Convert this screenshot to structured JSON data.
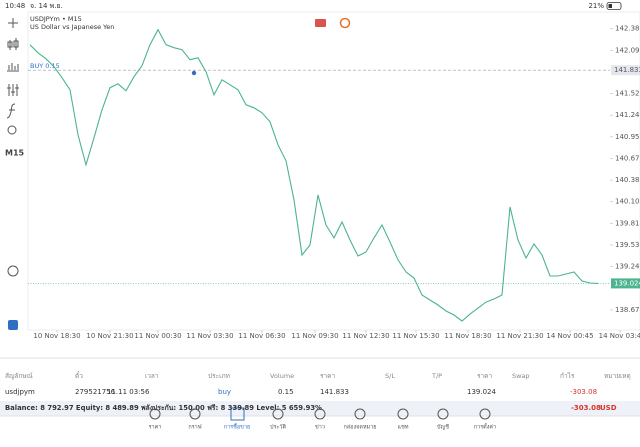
{
  "status": {
    "time": "10:48",
    "date": "จ. 14 พ.ย.",
    "battery": "21%"
  },
  "toolbar": {
    "timeframe": "M15"
  },
  "chart": {
    "type": "line",
    "symbol": "USDJPYm • M15",
    "description": "US Dollar vs Japanese Yen",
    "color": "#4cb48e",
    "values": [
      142.169,
      142.063,
      141.984,
      141.879,
      141.734,
      141.575,
      140.982,
      140.586,
      140.942,
      141.311,
      141.602,
      141.654,
      141.562,
      141.747,
      141.892,
      142.169,
      142.367,
      142.169,
      142.129,
      142.103,
      141.971,
      141.997,
      141.813,
      141.509,
      141.707,
      141.641,
      141.575,
      141.377,
      141.338,
      141.272,
      141.153,
      140.85,
      140.639,
      140.124,
      139.398,
      139.53,
      140.19,
      139.794,
      139.623,
      139.834,
      139.596,
      139.385,
      139.438,
      139.623,
      139.794,
      139.57,
      139.333,
      139.174,
      139.095,
      138.871,
      138.805,
      138.739,
      138.66,
      138.607,
      138.528,
      138.62,
      138.699,
      138.778,
      138.818,
      138.871,
      140.032,
      139.596,
      139.359,
      139.544,
      139.398,
      139.121,
      139.121,
      139.148,
      139.174,
      139.055,
      139.029,
      139.024
    ],
    "xlim": [
      -0.25,
      72.5
    ],
    "xticks": [
      {
        "value": 3.375,
        "label": "10 Nov 18:30"
      },
      {
        "value": 10,
        "label": "10 Nov 21:30"
      },
      {
        "value": 16,
        "label": "11 Nov 00:30"
      },
      {
        "value": 22.5,
        "label": "11 Nov 03:30"
      },
      {
        "value": 29,
        "label": "11 Nov 06:30"
      },
      {
        "value": 35.625,
        "label": "11 Nov 09:30"
      },
      {
        "value": 42,
        "label": "11 Nov 12:30"
      },
      {
        "value": 48.25,
        "label": "11 Nov 15:30"
      },
      {
        "value": 54.75,
        "label": "11 Nov 18:30"
      },
      {
        "value": 61.25,
        "label": "11 Nov 21:30"
      },
      {
        "value": 67.5,
        "label": "14 Nov 00:45"
      },
      {
        "value": 73.75,
        "label": "14 Nov 03:4"
      }
    ],
    "ylim": [
      138.41,
      142.6
    ],
    "yticks": [
      {
        "value": 142.38,
        "label": "142.380"
      },
      142.095,
      141.525,
      {
        "value": 141.24,
        "label": "141.240"
      },
      140.955,
      {
        "value": 140.67,
        "label": "140.670"
      },
      140.385,
      {
        "value": 140.1,
        "label": "140.100"
      },
      139.815,
      {
        "value": 139.53,
        "label": "139.530"
      },
      139.245,
      138.675
    ],
    "buy_label": "BUY 0.15",
    "buy_price": 141.833,
    "current_price": 139.024
  },
  "table": {
    "headers": [
      "สัญลักษณ์",
      "ตั๋ว",
      "เวลา",
      "ประเภท",
      "Volume",
      "ราคา",
      "S/L",
      "T/P",
      "ราคา",
      "Swap",
      "กำไร",
      "หมายเหตุ"
    ],
    "rows": [
      [
        "usdjpym",
        "279521756",
        "11.11 03:56",
        "buy",
        "0.15",
        "141.833",
        "",
        "",
        "139.024",
        "",
        "-303.08",
        ""
      ]
    ],
    "balance": "Balance: 8 792.97 Equity: 8 489.89 พลังประกัน: 150.00 ฟรี: 8 339.89 Level: 5 659.93%",
    "total": "-303.08",
    "currency": "USD"
  },
  "nav": [
    "ราคา",
    "กราฟ",
    "การซื้อขาย",
    "ประวัติ",
    "ข่าว",
    "กล่องจดหมาย",
    "แชท",
    "บัญชี",
    "การตั้งค่า"
  ]
}
